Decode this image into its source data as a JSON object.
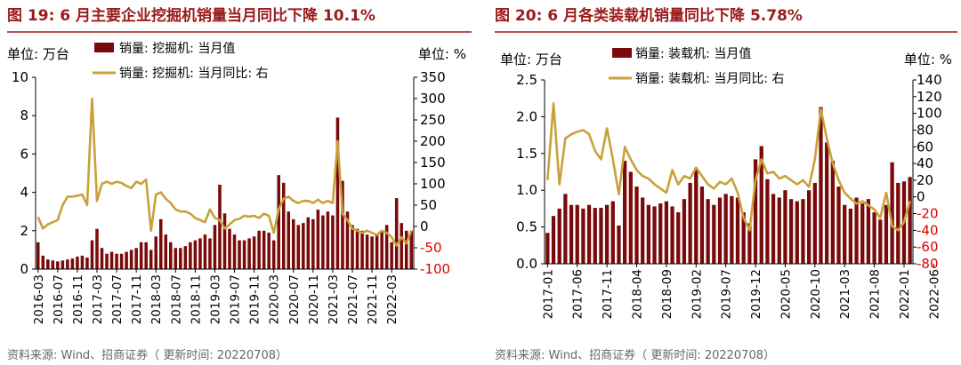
{
  "colors": {
    "bar": "#7a0a0a",
    "line": "#c8a13a",
    "title": "#9b1b1b",
    "axis": "#000000",
    "neg_tick": "#e00000"
  },
  "chart_data": [
    {
      "type": "bar+line",
      "title": "图 19:  6 月主要企业挖掘机销量当月同比下降 10.1%",
      "left_unit": "单位:  万台",
      "right_unit": "单位:   %",
      "legend_bar": "销量:  挖掘机:  当月值",
      "legend_line": "销量:  挖掘机:  当月同比:  右",
      "left_axis": {
        "min": 0,
        "max": 10,
        "ticks": [
          "0",
          "2",
          "4",
          "6",
          "8",
          "10"
        ]
      },
      "right_axis": {
        "min": -100,
        "max": 350,
        "ticks": [
          "-100",
          "-50",
          "0",
          "50",
          "100",
          "150",
          "200",
          "250",
          "300",
          "350"
        ]
      },
      "x_tick_labels": [
        "2016-03",
        "2016-07",
        "2016-11",
        "2017-03",
        "2017-07",
        "2017-11",
        "2018-03",
        "2018-07",
        "2018-11",
        "2019-03",
        "2019-07",
        "2019-11",
        "2020-03",
        "2020-07",
        "2020-11",
        "2021-03",
        "2021-07",
        "2021-11",
        "2022-03"
      ],
      "tick_start": 0,
      "tick_step": 4,
      "series_bar_name": "销量:挖掘机:当月值",
      "bar_values": [
        1.4,
        0.7,
        0.5,
        0.45,
        0.4,
        0.45,
        0.5,
        0.55,
        0.65,
        0.7,
        0.6,
        1.5,
        2.1,
        1.1,
        0.8,
        0.9,
        0.8,
        0.8,
        0.9,
        1.0,
        1.1,
        1.4,
        1.4,
        1.0,
        1.7,
        2.6,
        1.8,
        1.4,
        1.1,
        1.1,
        1.2,
        1.4,
        1.5,
        1.6,
        1.8,
        1.6,
        2.3,
        4.4,
        2.9,
        2.1,
        1.8,
        1.5,
        1.5,
        1.6,
        1.7,
        2.0,
        2.0,
        1.9,
        1.5,
        4.9,
        4.5,
        3.0,
        2.6,
        2.3,
        2.4,
        2.7,
        2.6,
        3.1,
        2.8,
        3.0,
        2.8,
        7.9,
        4.6,
        3.0,
        2.3,
        2.1,
        2.0,
        1.8,
        1.7,
        1.8,
        2.0,
        2.3,
        1.4,
        3.7,
        2.4,
        2.0,
        2.0
      ],
      "series_line_name": "销量:挖掘机:当月同比:右",
      "line_values": [
        22,
        -5,
        5,
        10,
        15,
        50,
        70,
        70,
        72,
        75,
        50,
        300,
        60,
        100,
        105,
        100,
        105,
        102,
        95,
        90,
        105,
        100,
        110,
        -10,
        75,
        80,
        65,
        55,
        40,
        35,
        35,
        30,
        20,
        15,
        10,
        40,
        20,
        15,
        -5,
        5,
        15,
        18,
        25,
        23,
        25,
        20,
        30,
        25,
        -15,
        40,
        65,
        70,
        60,
        55,
        60,
        60,
        55,
        63,
        55,
        60,
        55,
        200,
        30,
        15,
        -5,
        -10,
        -15,
        -10,
        -15,
        -20,
        -10,
        -15,
        -25,
        -45,
        -25,
        -40,
        -10
      ]
    },
    {
      "type": "bar+line",
      "title": "图 20:  6 月各类装载机销量同比下降 5.78%",
      "left_unit": "单位:  万台",
      "right_unit": "单位:   %",
      "legend_bar": "销量: 装载机: 当月值",
      "legend_line": "销量: 装载机: 当月同比: 右",
      "left_axis": {
        "min": 0,
        "max": 2.5,
        "ticks": [
          "0.0",
          "0.5",
          "1.0",
          "1.5",
          "2.0",
          "2.5"
        ]
      },
      "right_axis": {
        "min": -80,
        "max": 140,
        "ticks": [
          "-80",
          "-60",
          "-40",
          "-20",
          "0",
          "20",
          "40",
          "60",
          "80",
          "100",
          "120",
          "140"
        ]
      },
      "x_tick_labels": [
        "2017-01",
        "2017-06",
        "2017-11",
        "2018-04",
        "2018-09",
        "2019-02",
        "2019-07",
        "2019-12",
        "2020-05",
        "2020-10",
        "2021-03",
        "2021-08",
        "2022-01",
        "2022-06"
      ],
      "tick_start": 0,
      "tick_step": 5,
      "series_bar_name": "销量:装载机:当月值",
      "bar_values": [
        0.42,
        0.65,
        0.75,
        0.95,
        0.8,
        0.8,
        0.75,
        0.8,
        0.76,
        0.76,
        0.8,
        0.85,
        0.52,
        1.4,
        1.25,
        1.05,
        0.9,
        0.8,
        0.78,
        0.82,
        0.85,
        0.78,
        0.7,
        0.88,
        1.1,
        1.3,
        1.05,
        0.88,
        0.8,
        0.9,
        0.95,
        0.92,
        0.9,
        0.7,
        0.55,
        1.42,
        1.6,
        1.15,
        0.95,
        0.9,
        1.0,
        0.88,
        0.85,
        0.88,
        1.0,
        1.1,
        2.13,
        1.65,
        1.4,
        1.05,
        0.8,
        0.75,
        0.9,
        0.82,
        0.88,
        0.7,
        0.6,
        0.8,
        1.38,
        1.1,
        1.12,
        1.18
      ],
      "series_line_name": "销量:装载机:当月同比:右",
      "line_values": [
        20,
        112,
        15,
        70,
        75,
        78,
        80,
        75,
        55,
        45,
        82,
        45,
        3,
        60,
        45,
        32,
        25,
        22,
        15,
        10,
        5,
        32,
        15,
        25,
        22,
        35,
        25,
        15,
        10,
        18,
        15,
        22,
        5,
        -25,
        -40,
        20,
        45,
        28,
        30,
        22,
        25,
        20,
        15,
        20,
        12,
        45,
        105,
        70,
        40,
        20,
        5,
        -2,
        -8,
        -5,
        -10,
        -15,
        -25,
        5,
        -35,
        -40,
        -30,
        -5
      ]
    }
  ],
  "source": "资料来源:  Wind、招商证券（ 更新时间: 20220708）"
}
